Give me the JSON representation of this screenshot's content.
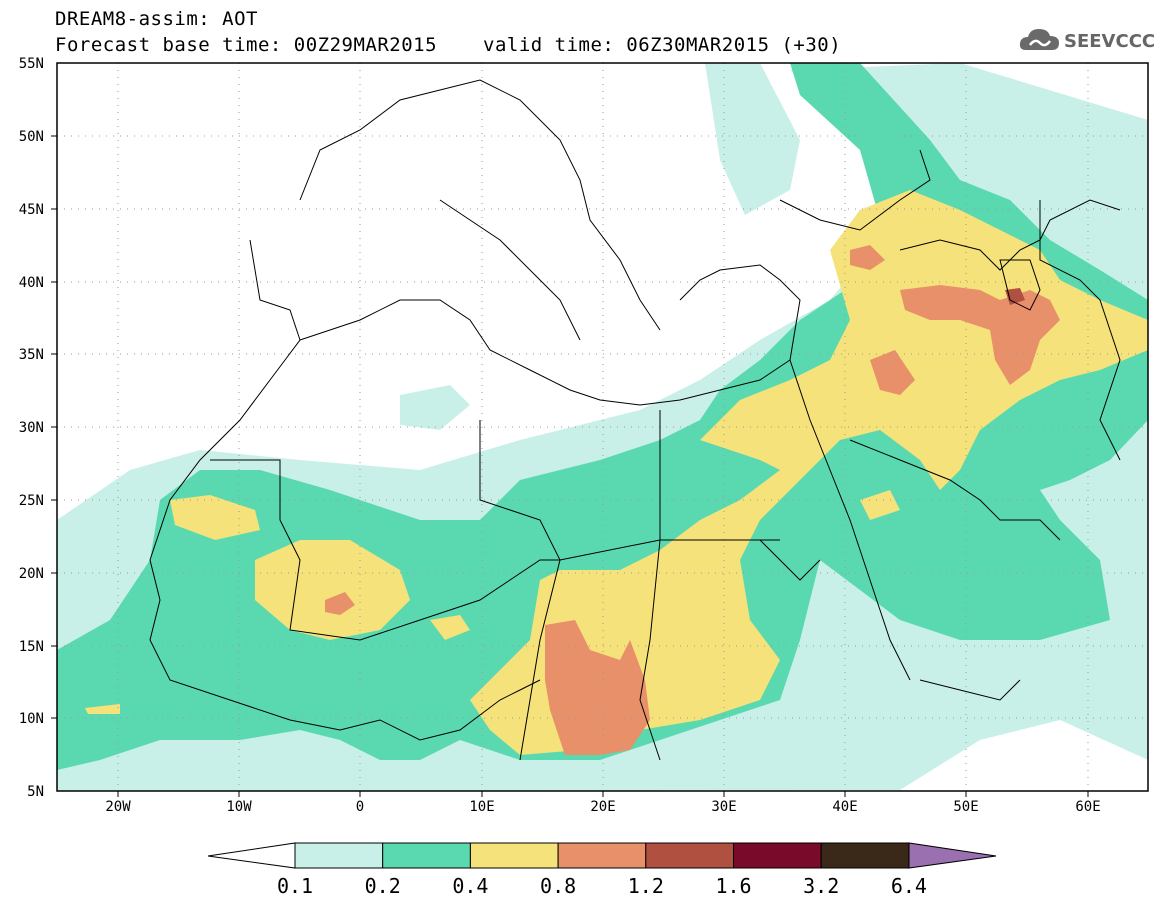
{
  "title": {
    "line1": "DREAM8-assim: AOT",
    "base_time": "Forecast base time: 00Z29MAR2015",
    "valid_time": "valid time: 06Z30MAR2015 (+30)"
  },
  "logo": {
    "text": "SEEVCCC",
    "icon": "cloud-icon"
  },
  "map": {
    "lon_range": [
      -25,
      65
    ],
    "lat_range": [
      5,
      55
    ],
    "lat_labels": [
      "55N",
      "50N",
      "45N",
      "40N",
      "35N",
      "30N",
      "25N",
      "20N",
      "15N",
      "10N",
      "5N"
    ],
    "lon_labels": [
      "20W",
      "10W",
      "0",
      "10E",
      "20E",
      "30E",
      "40E",
      "50E",
      "60E"
    ]
  },
  "colorbar": {
    "labels": [
      "0.1",
      "0.2",
      "0.4",
      "0.8",
      "1.2",
      "1.6",
      "3.2",
      "6.4"
    ],
    "colors": [
      "#c8f0e8",
      "#5ad9b0",
      "#f5e27a",
      "#e8906a",
      "#b05040",
      "#7a0a2a",
      "#3a2818"
    ],
    "under_color": "#ffffff",
    "over_color": "#9a70b0"
  }
}
